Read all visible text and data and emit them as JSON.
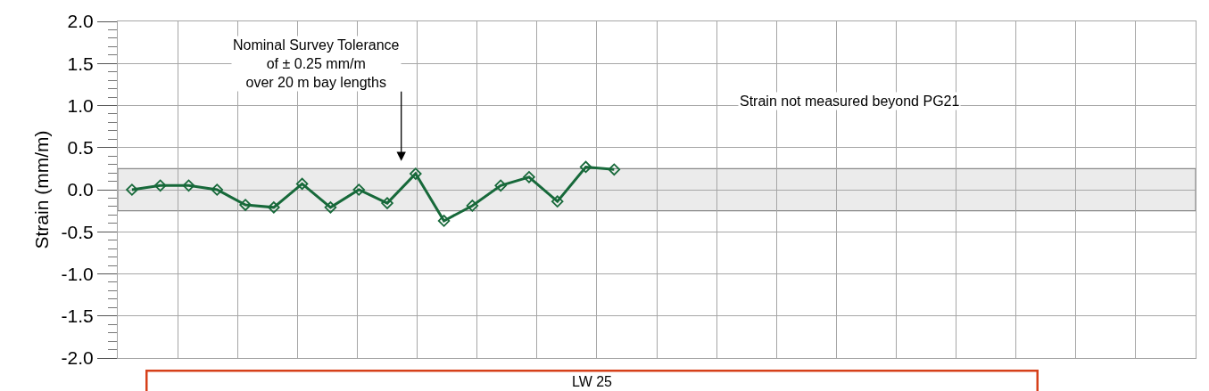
{
  "chart_data": {
    "type": "line",
    "ylabel": "Strain (mm/m)",
    "categories": [
      null,
      null,
      null,
      null,
      null,
      null,
      null,
      null,
      null,
      null,
      null,
      null,
      null,
      null,
      null,
      null,
      null,
      null,
      null,
      null,
      null,
      null,
      null,
      null,
      null,
      null,
      null,
      null,
      null,
      null,
      null,
      null,
      null,
      null,
      null,
      null,
      null,
      null
    ],
    "series": [
      {
        "color": "#17693a",
        "values": [
          0.0,
          0.05,
          0.05,
          0.0,
          -0.18,
          -0.21,
          0.07,
          -0.21,
          0.0,
          -0.16,
          0.19,
          -0.37,
          -0.19,
          0.05,
          0.15,
          -0.14,
          0.27,
          0.24,
          null,
          null,
          null,
          null,
          null,
          null,
          null,
          null,
          null,
          null,
          null,
          null,
          null,
          null,
          null,
          null,
          null,
          null,
          null,
          null
        ]
      }
    ],
    "ylim": [
      -2,
      2
    ],
    "yticks": [
      {
        "value": -2,
        "label": "-2.0"
      },
      {
        "value": -1.5,
        "label": "-1.5"
      },
      {
        "value": -1,
        "label": "-1.0"
      },
      {
        "value": -0.5,
        "label": "-0.5"
      },
      {
        "value": 0,
        "label": "0.0"
      },
      {
        "value": 0.5,
        "label": "0.5"
      },
      {
        "value": 1,
        "label": "1.0"
      },
      {
        "value": 1.5,
        "label": "1.5"
      },
      {
        "value": 2,
        "label": "2.0"
      }
    ],
    "bands": [
      {
        "axis": "y",
        "from": -0.25,
        "to": 0.25,
        "color": "#ebebeb"
      }
    ],
    "annotations": [
      "Nominal Survey Tolerance\nof ± 0.25 mm/m\nover 20 m bay lengths",
      "Strain not measured beyond PG21",
      "LW 25"
    ],
    "grid": true,
    "marker": "diamond",
    "line_style": "solid",
    "tick_labels": "y"
  }
}
